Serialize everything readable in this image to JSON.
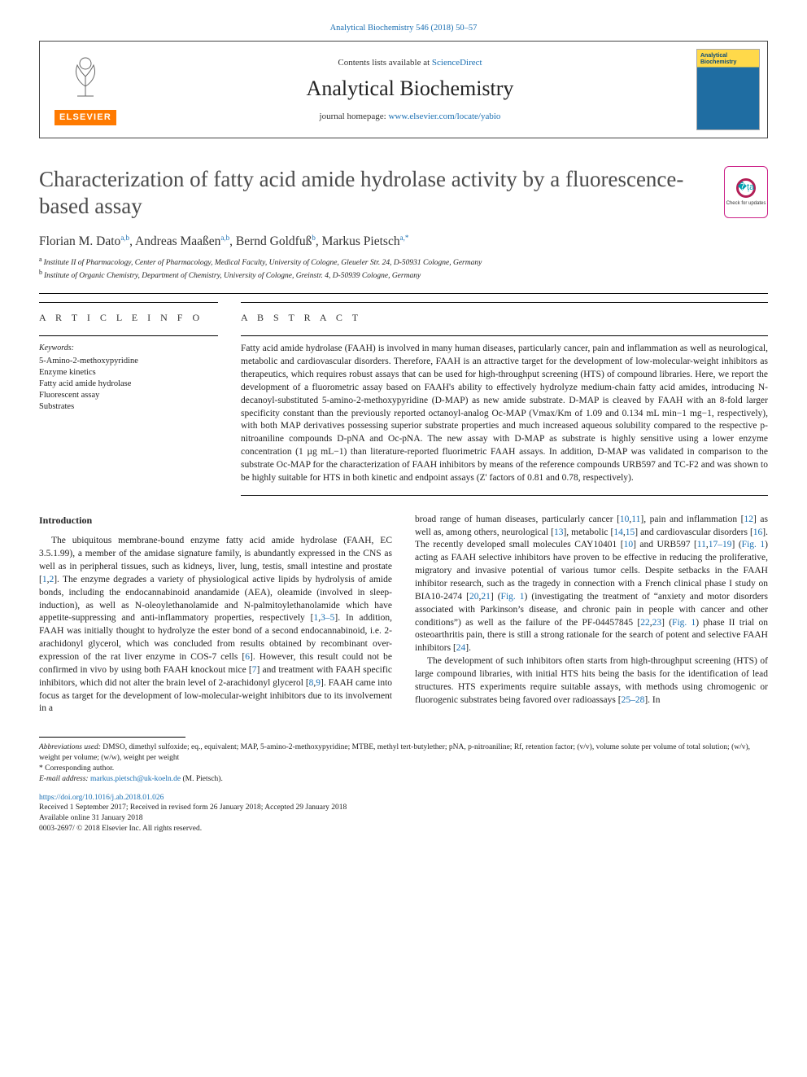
{
  "header": {
    "top_line_prefix": "Analytical Biochemistry 546 (2018) 50–57",
    "contents_prefix": "Contents lists available at ",
    "contents_link": "ScienceDirect",
    "journal_name": "Analytical Biochemistry",
    "homepage_prefix": "journal homepage: ",
    "homepage_url": "www.elsevier.com/locate/yabio",
    "publisher_word": "ELSEVIER",
    "cover_title": "Analytical Biochemistry"
  },
  "updates_badge": {
    "caption": "Check for updates"
  },
  "title": "Characterization of fatty acid amide hydrolase activity by a fluorescence-based assay",
  "authors_html": "Florian M. Dato<sup>a,b</sup>, Andreas Maaßen<sup>a,b</sup>, Bernd Goldfuß<sup>b</sup>, Markus Pietsch<sup>a,*</sup>",
  "affiliations": [
    {
      "marker": "a",
      "text": "Institute II of Pharmacology, Center of Pharmacology, Medical Faculty, University of Cologne, Gleueler Str. 24, D-50931 Cologne, Germany"
    },
    {
      "marker": "b",
      "text": "Institute of Organic Chemistry, Department of Chemistry, University of Cologne, Greinstr. 4, D-50939 Cologne, Germany"
    }
  ],
  "article_info": {
    "heading": "A R T I C L E  I N F O",
    "keywords_label": "Keywords:",
    "keywords": [
      "5-Amino-2-methoxypyridine",
      "Enzyme kinetics",
      "Fatty acid amide hydrolase",
      "Fluorescent assay",
      "Substrates"
    ]
  },
  "abstract": {
    "heading": "A B S T R A C T",
    "text": "Fatty acid amide hydrolase (FAAH) is involved in many human diseases, particularly cancer, pain and inflammation as well as neurological, metabolic and cardiovascular disorders. Therefore, FAAH is an attractive target for the development of low-molecular-weight inhibitors as therapeutics, which requires robust assays that can be used for high-throughput screening (HTS) of compound libraries. Here, we report the development of a fluorometric assay based on FAAH's ability to effectively hydrolyze medium-chain fatty acid amides, introducing N-decanoyl-substituted 5-amino-2-methoxypyridine (D-MAP) as new amide substrate. D-MAP is cleaved by FAAH with an 8-fold larger specificity constant than the previously reported octanoyl-analog Oc-MAP (Vmax/Km of 1.09 and 0.134 mL min−1 mg−1, respectively), with both MAP derivatives possessing superior substrate properties and much increased aqueous solubility compared to the respective p-nitroaniline compounds D-pNA and Oc-pNA. The new assay with D-MAP as substrate is highly sensitive using a lower enzyme concentration (1 µg mL−1) than literature-reported fluorimetric FAAH assays. In addition, D-MAP was validated in comparison to the substrate Oc-MAP for the characterization of FAAH inhibitors by means of the reference compounds URB597 and TC-F2 and was shown to be highly suitable for HTS in both kinetic and endpoint assays (Z' factors of 0.81 and 0.78, respectively)."
  },
  "body": {
    "intro_heading": "Introduction",
    "left_paragraph": "The ubiquitous membrane-bound enzyme fatty acid amide hydrolase (FAAH, EC 3.5.1.99), a member of the amidase signature family, is abundantly expressed in the CNS as well as in peripheral tissues, such as kidneys, liver, lung, testis, small intestine and prostate [1,2]. The enzyme degrades a variety of physiological active lipids by hydrolysis of amide bonds, including the endocannabinoid anandamide (AEA), oleamide (involved in sleep-induction), as well as N-oleoylethanolamide and N-palmitoylethanolamide which have appetite-suppressing and anti-inflammatory properties, respectively [1,3–5]. In addition, FAAH was initially thought to hydrolyze the ester bond of a second endocannabinoid, i.e. 2-arachidonyl glycerol, which was concluded from results obtained by recombinant over-expression of the rat liver enzyme in COS-7 cells [6]. However, this result could not be confirmed in vivo by using both FAAH knockout mice [7] and treatment with FAAH specific inhibitors, which did not alter the brain level of 2-arachidonyl glycerol [8,9]. FAAH came into focus as target for the development of low-molecular-weight inhibitors due to its involvement in a",
    "right_p1": "broad range of human diseases, particularly cancer [10,11], pain and inflammation [12] as well as, among others, neurological [13], metabolic [14,15] and cardiovascular disorders [16]. The recently developed small molecules CAY10401 [10] and URB597 [11,17–19] (Fig. 1) acting as FAAH selective inhibitors have proven to be effective in reducing the proliferative, migratory and invasive potential of various tumor cells. Despite setbacks in the FAAH inhibitor research, such as the tragedy in connection with a French clinical phase I study on BIA10-2474 [20,21] (Fig. 1) (investigating the treatment of \"anxiety and motor disorders associated with Parkinson's disease, and chronic pain in people with cancer and other conditions\") as well as the failure of the PF-04457845 [22,23] (Fig. 1) phase II trial on osteoarthritis pain, there is still a strong rationale for the search of potent and selective FAAH inhibitors [24].",
    "right_p2": "The development of such inhibitors often starts from high-throughput screening (HTS) of large compound libraries, with initial HTS hits being the basis for the identification of lead structures. HTS experiments require suitable assays, with methods using chromogenic or fluorogenic substrates being favored over radioassays [25–28]. In"
  },
  "refs": {
    "r1": "1",
    "r2": "2",
    "r3": "1",
    "r4": "3–5",
    "r6": "6",
    "r7": "7",
    "r8": "8",
    "r9": "9",
    "r10": "10",
    "r11": "11",
    "r12": "12",
    "r13": "13",
    "r14": "14",
    "r15": "15",
    "r16": "16",
    "r17": "10",
    "r18": "11",
    "r19": "17–19",
    "r20": "20",
    "r21": "21",
    "r22": "22",
    "r23": "23",
    "r24": "24",
    "r25": "25–28",
    "fig1a": "Fig. 1",
    "fig1b": "Fig. 1",
    "fig1c": "Fig. 1"
  },
  "footnotes": {
    "abbrev_label": "Abbreviations used:",
    "abbrev_text": " DMSO, dimethyl sulfoxide; eq., equivalent; MAP, 5-amino-2-methoxypyridine; MTBE, methyl tert-butylether; pNA, p-nitroaniline; Rf, retention factor; (v/v), volume solute per volume of total solution; (w/v), weight per volume; (w/w), weight per weight",
    "corresponding": "* Corresponding author.",
    "email_label": "E-mail address: ",
    "email": "markus.pietsch@uk-koeln.de",
    "email_who": " (M. Pietsch)."
  },
  "footer": {
    "doi": "https://doi.org/10.1016/j.ab.2018.01.026",
    "received": "Received 1 September 2017; Received in revised form 26 January 2018; Accepted 29 January 2018",
    "online": "Available online 31 January 2018",
    "copyright": "0003-2697/ © 2018 Elsevier Inc. All rights reserved."
  },
  "colors": {
    "link": "#1a6fb2",
    "elsevier_orange": "#ff7a00",
    "cover_yellow": "#ffd94a",
    "cover_blue": "#1f6da2",
    "badge_ring": "#b21e56",
    "badge_mark": "#00a0b0"
  }
}
